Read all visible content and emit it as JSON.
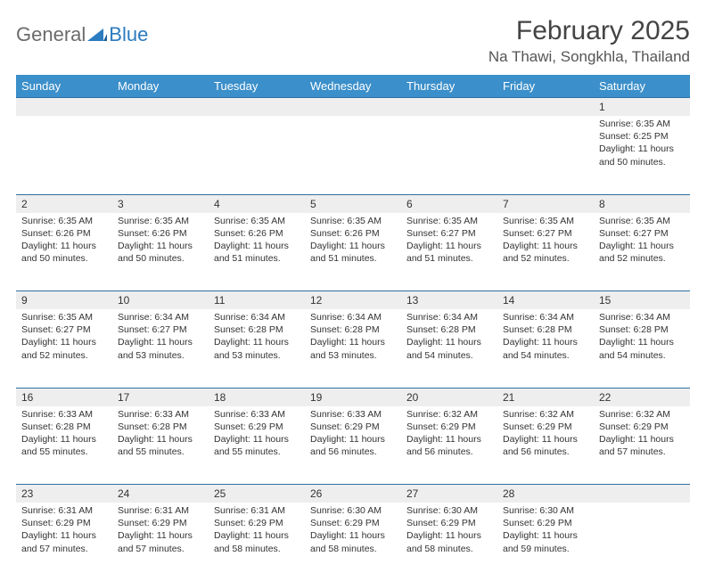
{
  "brand": {
    "part1": "General",
    "part2": "Blue"
  },
  "title": "February 2025",
  "location": "Na Thawi, Songkhla, Thailand",
  "colors": {
    "header_bg": "#3b8fca",
    "header_text": "#ffffff",
    "daynum_bg": "#eeeeee",
    "rule": "#2f6fa0",
    "logo_grey": "#6b6b6b",
    "logo_blue": "#2b7bbf"
  },
  "weekdays": [
    "Sunday",
    "Monday",
    "Tuesday",
    "Wednesday",
    "Thursday",
    "Friday",
    "Saturday"
  ],
  "weeks": [
    [
      null,
      null,
      null,
      null,
      null,
      null,
      {
        "n": "1",
        "sunrise": "6:35 AM",
        "sunset": "6:25 PM",
        "daylight": "11 hours and 50 minutes."
      }
    ],
    [
      {
        "n": "2",
        "sunrise": "6:35 AM",
        "sunset": "6:26 PM",
        "daylight": "11 hours and 50 minutes."
      },
      {
        "n": "3",
        "sunrise": "6:35 AM",
        "sunset": "6:26 PM",
        "daylight": "11 hours and 50 minutes."
      },
      {
        "n": "4",
        "sunrise": "6:35 AM",
        "sunset": "6:26 PM",
        "daylight": "11 hours and 51 minutes."
      },
      {
        "n": "5",
        "sunrise": "6:35 AM",
        "sunset": "6:26 PM",
        "daylight": "11 hours and 51 minutes."
      },
      {
        "n": "6",
        "sunrise": "6:35 AM",
        "sunset": "6:27 PM",
        "daylight": "11 hours and 51 minutes."
      },
      {
        "n": "7",
        "sunrise": "6:35 AM",
        "sunset": "6:27 PM",
        "daylight": "11 hours and 52 minutes."
      },
      {
        "n": "8",
        "sunrise": "6:35 AM",
        "sunset": "6:27 PM",
        "daylight": "11 hours and 52 minutes."
      }
    ],
    [
      {
        "n": "9",
        "sunrise": "6:35 AM",
        "sunset": "6:27 PM",
        "daylight": "11 hours and 52 minutes."
      },
      {
        "n": "10",
        "sunrise": "6:34 AM",
        "sunset": "6:27 PM",
        "daylight": "11 hours and 53 minutes."
      },
      {
        "n": "11",
        "sunrise": "6:34 AM",
        "sunset": "6:28 PM",
        "daylight": "11 hours and 53 minutes."
      },
      {
        "n": "12",
        "sunrise": "6:34 AM",
        "sunset": "6:28 PM",
        "daylight": "11 hours and 53 minutes."
      },
      {
        "n": "13",
        "sunrise": "6:34 AM",
        "sunset": "6:28 PM",
        "daylight": "11 hours and 54 minutes."
      },
      {
        "n": "14",
        "sunrise": "6:34 AM",
        "sunset": "6:28 PM",
        "daylight": "11 hours and 54 minutes."
      },
      {
        "n": "15",
        "sunrise": "6:34 AM",
        "sunset": "6:28 PM",
        "daylight": "11 hours and 54 minutes."
      }
    ],
    [
      {
        "n": "16",
        "sunrise": "6:33 AM",
        "sunset": "6:28 PM",
        "daylight": "11 hours and 55 minutes."
      },
      {
        "n": "17",
        "sunrise": "6:33 AM",
        "sunset": "6:28 PM",
        "daylight": "11 hours and 55 minutes."
      },
      {
        "n": "18",
        "sunrise": "6:33 AM",
        "sunset": "6:29 PM",
        "daylight": "11 hours and 55 minutes."
      },
      {
        "n": "19",
        "sunrise": "6:33 AM",
        "sunset": "6:29 PM",
        "daylight": "11 hours and 56 minutes."
      },
      {
        "n": "20",
        "sunrise": "6:32 AM",
        "sunset": "6:29 PM",
        "daylight": "11 hours and 56 minutes."
      },
      {
        "n": "21",
        "sunrise": "6:32 AM",
        "sunset": "6:29 PM",
        "daylight": "11 hours and 56 minutes."
      },
      {
        "n": "22",
        "sunrise": "6:32 AM",
        "sunset": "6:29 PM",
        "daylight": "11 hours and 57 minutes."
      }
    ],
    [
      {
        "n": "23",
        "sunrise": "6:31 AM",
        "sunset": "6:29 PM",
        "daylight": "11 hours and 57 minutes."
      },
      {
        "n": "24",
        "sunrise": "6:31 AM",
        "sunset": "6:29 PM",
        "daylight": "11 hours and 57 minutes."
      },
      {
        "n": "25",
        "sunrise": "6:31 AM",
        "sunset": "6:29 PM",
        "daylight": "11 hours and 58 minutes."
      },
      {
        "n": "26",
        "sunrise": "6:30 AM",
        "sunset": "6:29 PM",
        "daylight": "11 hours and 58 minutes."
      },
      {
        "n": "27",
        "sunrise": "6:30 AM",
        "sunset": "6:29 PM",
        "daylight": "11 hours and 58 minutes."
      },
      {
        "n": "28",
        "sunrise": "6:30 AM",
        "sunset": "6:29 PM",
        "daylight": "11 hours and 59 minutes."
      },
      null
    ]
  ],
  "labels": {
    "sunrise": "Sunrise:",
    "sunset": "Sunset:",
    "daylight": "Daylight:"
  }
}
